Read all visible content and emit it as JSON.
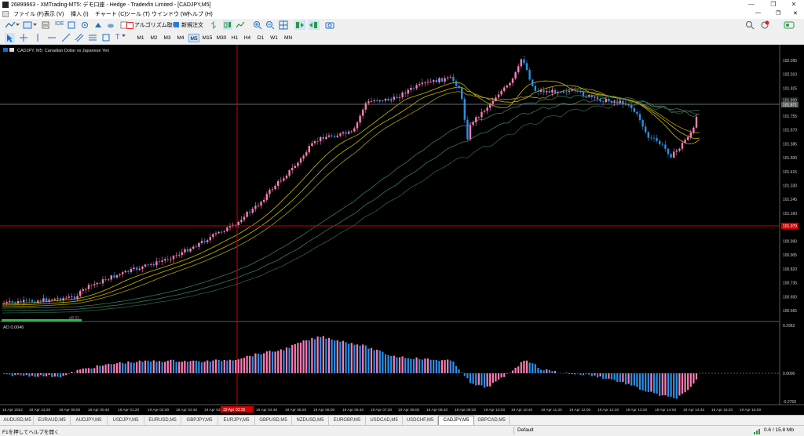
{
  "window": {
    "title": "26899663 - XMTrading-MT5: デモ口座 - Hedge - Tradexfin Limited - [CADJPY,M5]",
    "minimize": "—",
    "maximize": "❐",
    "close": "✕"
  },
  "menu": [
    "ファイル (F)",
    "表示 (V)",
    "挿入 (I)",
    "チャート (C)",
    "ツール (T)",
    "ウインドウ (W)",
    "ヘルプ (H)"
  ],
  "toolbar": {
    "ide_label": "IDE",
    "algo_label": "アルゴリズム取引",
    "new_order_label": "新規注文"
  },
  "timeframes": [
    "M1",
    "M2",
    "M3",
    "M4",
    "M5",
    "M15",
    "M30",
    "H1",
    "H4",
    "D1",
    "W1",
    "MN"
  ],
  "active_timeframe": "M5",
  "chart": {
    "header": "CADJPY, M5: Canadian Dollar vs Japanese Yen",
    "price_labels": [
      "102.095",
      "102.010",
      "101.925",
      "101.840",
      "101.755",
      "101.670",
      "101.585",
      "101.500",
      "101.415",
      "101.330",
      "101.245",
      "101.160",
      "101.075",
      "100.990",
      "100.905",
      "100.820",
      "100.735",
      "100.650",
      "100.565"
    ],
    "bid_tag": "101.871",
    "ask_tag": "101.899",
    "crosshair_price_tag": "101.079",
    "crosshair_time_tag": "19 Apr 03:35",
    "small_label": "eB 01",
    "ao_header": "AO 0.0046",
    "ao_labels": [
      "0.2962",
      "0.0000",
      "-0.2759"
    ],
    "time_labels": [
      "18 Apr 2022",
      "18 Apr 23:20",
      "19 Apr 00:00",
      "19 Apr 00:40",
      "19 Apr 01:20",
      "19 Apr 02:00",
      "19 Apr 02:40",
      "19 Apr 03:20",
      "19 Apr 04:40",
      "19 Apr 05:20",
      "19 Apr 06:00",
      "19 Apr 06:40",
      "19 Apr 07:20",
      "19 Apr 08:00",
      "19 Apr 08:40",
      "19 Apr 09:20",
      "19 Apr 10:00",
      "19 Apr 10:40",
      "19 Apr 11:20",
      "19 Apr 12:00",
      "19 Apr 12:40",
      "19 Apr 13:20",
      "19 Apr 14:00",
      "19 Apr 14:40",
      "19 Apr 15:20",
      "19 Apr 16:00"
    ]
  },
  "colors": {
    "bull": "#ff7eb6",
    "bear": "#2d8fe6",
    "ma_yellow": "#c9b800",
    "ma_green": "#3a7a55",
    "crosshair": "#d00000",
    "bid_line": "#9aa0a0"
  },
  "tabs": [
    "AUDUSD,M5",
    "EURAUD,M5",
    "AUDJPY,M5",
    "USDJPY,M5",
    "EURUSD,M5",
    "GBPJPY,M5",
    "EURJPY,M5",
    "GBPUSD,M5",
    "NZDUSD,M5",
    "EURGBP,M5",
    "USDCAD,M5",
    "USDCHF,M5",
    "CADJPY,M5",
    "GBPCAD,M5"
  ],
  "active_tab": "CADJPY,M5",
  "status": {
    "help": "F1を押してヘルプを開く",
    "profile": "Default",
    "traffic": "0.6 / 15.8 Mb"
  }
}
